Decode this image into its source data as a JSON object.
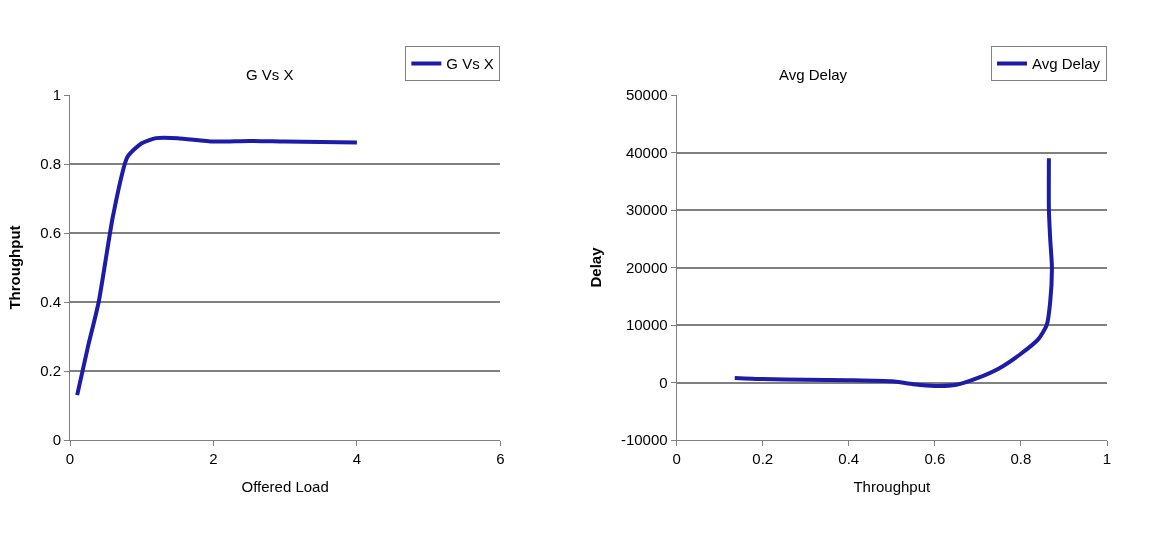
{
  "chart_data": [
    {
      "type": "line",
      "title": "G Vs X",
      "xlabel": "Offered Load",
      "ylabel": "Throughput",
      "xlim": [
        0,
        6
      ],
      "xticks": [
        0,
        2,
        4,
        6
      ],
      "ylim": [
        0,
        1
      ],
      "yticks": [
        0,
        0.2,
        0.4,
        0.6,
        0.8,
        1
      ],
      "grid": "y",
      "legend": "top right",
      "series": [
        {
          "name": "G Vs X",
          "color": "#1c1ca8",
          "x": [
            0.1,
            0.25,
            0.4,
            0.6,
            0.8,
            1.0,
            1.2,
            1.5,
            2.0,
            2.5,
            3.0,
            3.5,
            4.0
          ],
          "values": [
            0.13,
            0.27,
            0.4,
            0.65,
            0.82,
            0.86,
            0.875,
            0.875,
            0.865,
            0.867,
            0.865,
            0.864,
            0.862
          ]
        }
      ]
    },
    {
      "type": "line",
      "title": "Avg Delay",
      "xlabel": "Throughput",
      "ylabel": "Delay",
      "xlim": [
        0,
        1
      ],
      "xticks": [
        0,
        0.2,
        0.4,
        0.6,
        0.8,
        1
      ],
      "ylim": [
        -10000,
        50000
      ],
      "yticks": [
        -10000,
        0,
        10000,
        20000,
        30000,
        40000,
        50000
      ],
      "grid": "y",
      "legend": "top right",
      "series": [
        {
          "name": "Avg Delay",
          "color": "#1c1ca8",
          "x": [
            0.135,
            0.2,
            0.3,
            0.4,
            0.5,
            0.55,
            0.6,
            0.65,
            0.7,
            0.75,
            0.8,
            0.84,
            0.86,
            0.868,
            0.872,
            0.868,
            0.865,
            0.865
          ],
          "values": [
            800,
            600,
            500,
            400,
            200,
            -300,
            -600,
            -400,
            800,
            2500,
            5000,
            7500,
            10000,
            14000,
            20000,
            25000,
            30000,
            39000
          ]
        }
      ]
    }
  ]
}
